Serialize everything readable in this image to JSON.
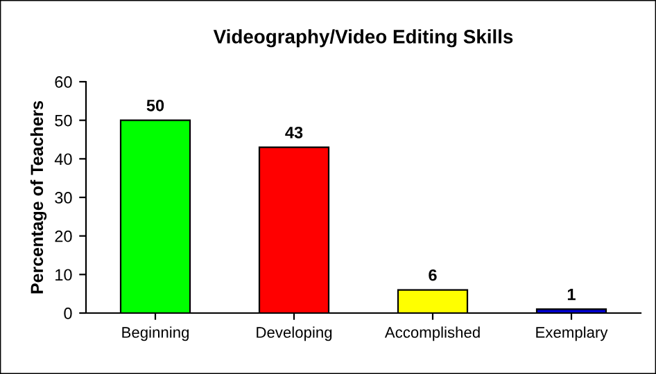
{
  "chart_data": {
    "type": "bar",
    "title": "Videography/Video Editing Skills",
    "ylabel": "Percentage of Teachers",
    "categories": [
      "Beginning",
      "Developing",
      "Accomplished",
      "Exemplary"
    ],
    "values": [
      50,
      43,
      6,
      1
    ],
    "colors": [
      "#00ff00",
      "#ff0000",
      "#ffff00",
      "#0000cc"
    ],
    "ylim": [
      0,
      60
    ],
    "yticks": [
      0,
      10,
      20,
      30,
      40,
      50,
      60
    ],
    "grid": false,
    "data_labels": true
  }
}
